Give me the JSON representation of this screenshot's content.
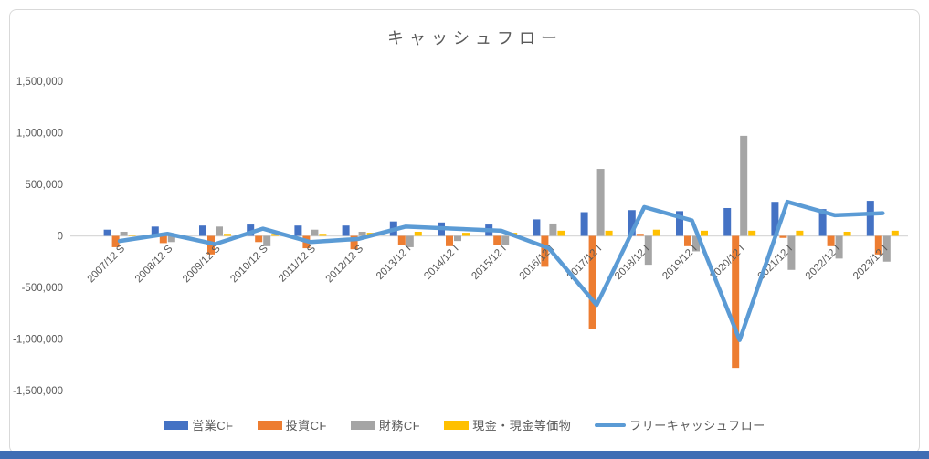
{
  "window": {
    "bottom_strip_color": "#3f6db4",
    "frame_border_color": "#D9D9D9"
  },
  "chart_data": {
    "type": "bar",
    "subtype": "clustered-column-with-line",
    "title": "キャッシュフロー",
    "categories": [
      "2007/12 S",
      "2008/12 S",
      "2009/12 S",
      "2010/12 S",
      "2011/12 S",
      "2012/12 S",
      "2013/12 I",
      "2014/12 I",
      "2015/12 I",
      "2016/12 I",
      "2017/12 I",
      "2018/12 I",
      "2019/12 I",
      "2020/12 I",
      "2021/12 I",
      "2022/12 I",
      "2023/12 I"
    ],
    "series": [
      {
        "name": "営業CF",
        "type": "bar",
        "color": "#4472C4",
        "values": [
          60000,
          90000,
          100000,
          110000,
          100000,
          100000,
          140000,
          130000,
          110000,
          160000,
          230000,
          250000,
          240000,
          270000,
          330000,
          260000,
          340000
        ]
      },
      {
        "name": "投資CF",
        "type": "bar",
        "color": "#ED7D31",
        "values": [
          -110000,
          -70000,
          -180000,
          -60000,
          -120000,
          -130000,
          -90000,
          -100000,
          -90000,
          -300000,
          -900000,
          20000,
          -100000,
          -1280000,
          -20000,
          -100000,
          -180000
        ]
      },
      {
        "name": "財務CF",
        "type": "bar",
        "color": "#A5A5A5",
        "values": [
          40000,
          -60000,
          90000,
          -100000,
          60000,
          40000,
          -110000,
          -50000,
          -90000,
          120000,
          650000,
          -280000,
          -150000,
          970000,
          -330000,
          -220000,
          -250000
        ]
      },
      {
        "name": "現金・現金等価物",
        "type": "bar",
        "color": "#FFC000",
        "values": [
          10000,
          10000,
          20000,
          20000,
          20000,
          30000,
          40000,
          30000,
          30000,
          50000,
          50000,
          60000,
          50000,
          50000,
          50000,
          40000,
          50000
        ]
      },
      {
        "name": "フリーキャッシュフロー",
        "type": "line",
        "color": "#5B9BD5",
        "values": [
          -50000,
          20000,
          -80000,
          70000,
          -60000,
          -30000,
          90000,
          70000,
          50000,
          -120000,
          -670000,
          280000,
          150000,
          -1010000,
          330000,
          200000,
          220000
        ]
      }
    ],
    "ylim": [
      -1500000,
      1500000
    ],
    "ytick_step": 500000,
    "yticks": [
      {
        "value": 1500000,
        "label": "1,500,000"
      },
      {
        "value": 1000000,
        "label": "1,000,000"
      },
      {
        "value": 500000,
        "label": "500,000"
      },
      {
        "value": 0,
        "label": "0"
      },
      {
        "value": -500000,
        "label": "-500,000"
      },
      {
        "value": -1000000,
        "label": "-1,000,000"
      },
      {
        "value": -1500000,
        "label": "-1,500,000"
      }
    ],
    "grid": false,
    "zero_line_color": "#D9D9D9",
    "axis_text_color": "#595959",
    "title_color": "#595959",
    "legend_position": "bottom",
    "x_label_rotation_deg": -45
  }
}
